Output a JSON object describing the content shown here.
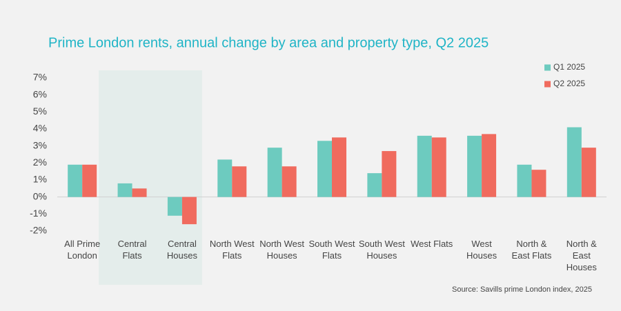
{
  "chart_data": {
    "type": "bar",
    "title": "Prime London rents, annual change by area and property type, Q2 2025",
    "source": "Source: Savills prime London index, 2025",
    "categories": [
      "All Prime London",
      "Central Flats",
      "Central Houses",
      "North West Flats",
      "North West Houses",
      "South West Flats",
      "South West Houses",
      "West Flats",
      "West Houses",
      "North & East Flats",
      "North & East Houses"
    ],
    "series": [
      {
        "name": "Q1 2025",
        "color": "#6dcbbf",
        "values": [
          1.9,
          0.8,
          -1.1,
          2.2,
          2.9,
          3.3,
          1.4,
          3.6,
          3.6,
          1.9,
          4.1
        ]
      },
      {
        "name": "Q2 2025",
        "color": "#f06b5e",
        "values": [
          1.9,
          0.5,
          -1.6,
          1.8,
          1.8,
          3.5,
          2.7,
          3.5,
          3.7,
          1.6,
          2.9
        ]
      }
    ],
    "ylim": [
      -2,
      7
    ],
    "yticks": [
      {
        "value": -2,
        "label": "-2%"
      },
      {
        "value": -1,
        "label": "-1%"
      },
      {
        "value": 0,
        "label": "0%"
      },
      {
        "value": 1,
        "label": "1%"
      },
      {
        "value": 2,
        "label": "2%"
      },
      {
        "value": 3,
        "label": "3%"
      },
      {
        "value": 4,
        "label": "4%"
      },
      {
        "value": 5,
        "label": "5%"
      },
      {
        "value": 6,
        "label": "6%"
      },
      {
        "value": 7,
        "label": "7%"
      }
    ],
    "legend": "top-right"
  }
}
